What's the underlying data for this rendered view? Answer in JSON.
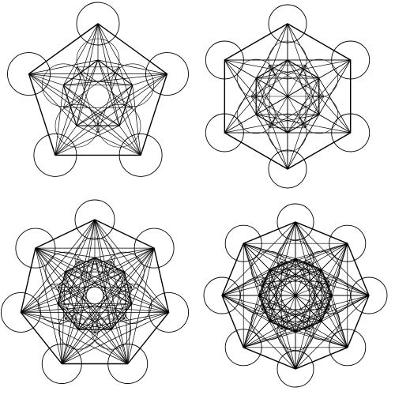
{
  "background": "#ffffff",
  "stroke_color": "#000000",
  "figures": [
    {
      "name": "figure-5-fold",
      "sides": 5
    },
    {
      "name": "figure-6-fold",
      "sides": 6
    },
    {
      "name": "figure-7-fold",
      "sides": 7
    },
    {
      "name": "figure-8-fold",
      "sides": 8
    }
  ]
}
